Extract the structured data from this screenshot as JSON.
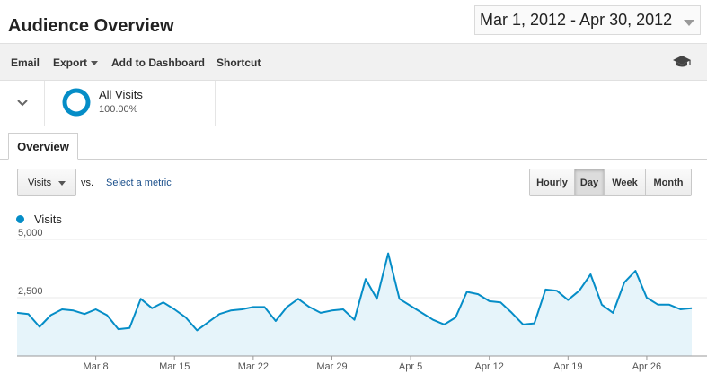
{
  "header": {
    "title": "Audience Overview",
    "date_range": "Mar 1, 2012 - Apr 30, 2012"
  },
  "toolbar": {
    "email": "Email",
    "export": "Export",
    "add_to_dashboard": "Add to Dashboard",
    "shortcut": "Shortcut",
    "help_icon": "graduation-cap-icon"
  },
  "segment": {
    "name": "All Visits",
    "percent": "100.00%",
    "toggle_icon": "chevron-down-icon"
  },
  "tabs": [
    {
      "label": "Overview"
    }
  ],
  "controls": {
    "metric": "Visits",
    "vs": "vs.",
    "select_metric": "Select a metric",
    "range_buttons": [
      "Hourly",
      "Day",
      "Week",
      "Month"
    ],
    "active_range": "Day"
  },
  "colors": {
    "series_line": "#058dc7",
    "series_fill": "#e6f4fa"
  },
  "chart_data": {
    "type": "area",
    "series": [
      {
        "name": "Visits",
        "values": [
          1850,
          1800,
          1250,
          1750,
          2000,
          1950,
          1800,
          2000,
          1750,
          1150,
          1200,
          2450,
          2050,
          2300,
          2000,
          1650,
          1100,
          1450,
          1800,
          1950,
          2000,
          2100,
          2100,
          1500,
          2100,
          2450,
          2100,
          1850,
          1950,
          2000,
          1550,
          3300,
          2450,
          4400,
          2450,
          2150,
          1850,
          1550,
          1350,
          1650,
          2750,
          2650,
          2350,
          2300,
          1850,
          1350,
          1400,
          2850,
          2800,
          2400,
          2800,
          3500,
          2200,
          1850,
          3150,
          3650,
          2500,
          2200,
          2200,
          2000,
          2050
        ]
      }
    ],
    "x_start": "Mar 1",
    "x_tick_labels": [
      "Mar 8",
      "Mar 15",
      "Mar 22",
      "Mar 29",
      "Apr 5",
      "Apr 12",
      "Apr 19",
      "Apr 26"
    ],
    "x_tick_indices": [
      7,
      14,
      21,
      28,
      35,
      42,
      49,
      56
    ],
    "y_tick_labels": [
      "2,500",
      "5,000"
    ],
    "y_tick_values": [
      2500,
      5000
    ],
    "ylim": [
      0,
      5000
    ],
    "grid": true,
    "legend": "top-left"
  }
}
